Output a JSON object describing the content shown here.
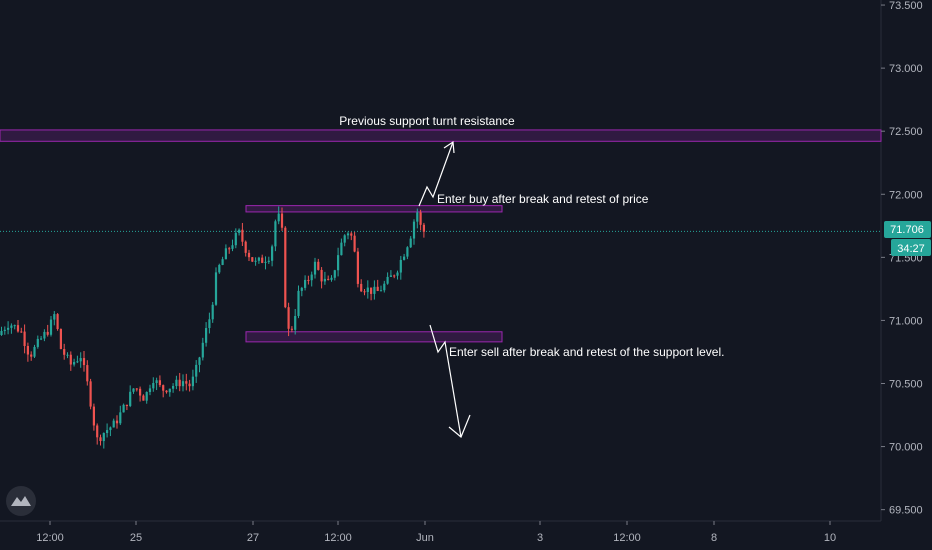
{
  "chart_data": {
    "type": "candlestick",
    "x_ticks": [
      "12:00",
      "25",
      "27",
      "12:00",
      "Jun",
      "3",
      "12:00",
      "8",
      "10"
    ],
    "y_ticks": [
      "73.500",
      "73.000",
      "72.500",
      "72.000",
      "71.500",
      "71.000",
      "70.500",
      "70.000",
      "69.500"
    ],
    "y_tick_values": [
      73.5,
      73.0,
      72.5,
      72.0,
      71.5,
      71.0,
      70.5,
      70.0,
      69.5
    ],
    "ylim": [
      69.41,
      73.54
    ],
    "last_price": 71.706,
    "last_price_label": "71.706",
    "countdown": "34:27",
    "zones": [
      {
        "name": "resistance",
        "y_top": 72.51,
        "y_bottom": 72.42
      },
      {
        "name": "upper-box",
        "y_top": 71.91,
        "y_bottom": 71.86
      },
      {
        "name": "lower-box",
        "y_top": 70.91,
        "y_bottom": 70.83
      }
    ],
    "annotations": [
      {
        "name": "resistance-label",
        "text": "Previous support turnt resistance"
      },
      {
        "name": "buy-label",
        "text": "Enter buy after break and retest of price"
      },
      {
        "name": "sell-label",
        "text": "Enter sell after break and retest of the support level."
      }
    ],
    "series_anchors": [
      [
        0.5,
        70.88
      ],
      [
        12,
        70.98
      ],
      [
        24,
        70.92
      ],
      [
        33,
        70.72
      ],
      [
        45,
        70.86
      ],
      [
        52,
        70.93
      ],
      [
        58,
        71.05
      ],
      [
        64,
        70.78
      ],
      [
        74,
        70.65
      ],
      [
        84,
        70.72
      ],
      [
        92,
        70.45
      ],
      [
        100,
        70.05
      ],
      [
        108,
        70.12
      ],
      [
        118,
        70.18
      ],
      [
        128,
        70.32
      ],
      [
        138,
        70.48
      ],
      [
        148,
        70.38
      ],
      [
        156,
        70.55
      ],
      [
        165,
        70.45
      ],
      [
        175,
        70.48
      ],
      [
        186,
        70.52
      ],
      [
        194,
        70.48
      ],
      [
        200,
        70.62
      ],
      [
        208,
        70.88
      ],
      [
        214,
        71.05
      ],
      [
        220,
        71.38
      ],
      [
        228,
        71.52
      ],
      [
        236,
        71.62
      ],
      [
        242,
        71.7
      ],
      [
        250,
        71.55
      ],
      [
        258,
        71.45
      ],
      [
        266,
        71.48
      ],
      [
        274,
        71.52
      ],
      [
        280,
        71.86
      ],
      [
        285,
        71.75
      ],
      [
        290,
        70.9
      ],
      [
        296,
        70.95
      ],
      [
        302,
        71.22
      ],
      [
        310,
        71.3
      ],
      [
        318,
        71.45
      ],
      [
        326,
        71.32
      ],
      [
        334,
        71.28
      ],
      [
        342,
        71.55
      ],
      [
        350,
        71.72
      ],
      [
        356,
        71.65
      ],
      [
        362,
        71.28
      ],
      [
        370,
        71.25
      ],
      [
        380,
        71.22
      ],
      [
        390,
        71.3
      ],
      [
        400,
        71.4
      ],
      [
        408,
        71.55
      ],
      [
        414,
        71.68
      ],
      [
        420,
        71.88
      ],
      [
        425,
        71.706
      ]
    ],
    "grid": false,
    "legend": "none"
  },
  "logo": {
    "icon": "tradingview-logo-icon"
  }
}
